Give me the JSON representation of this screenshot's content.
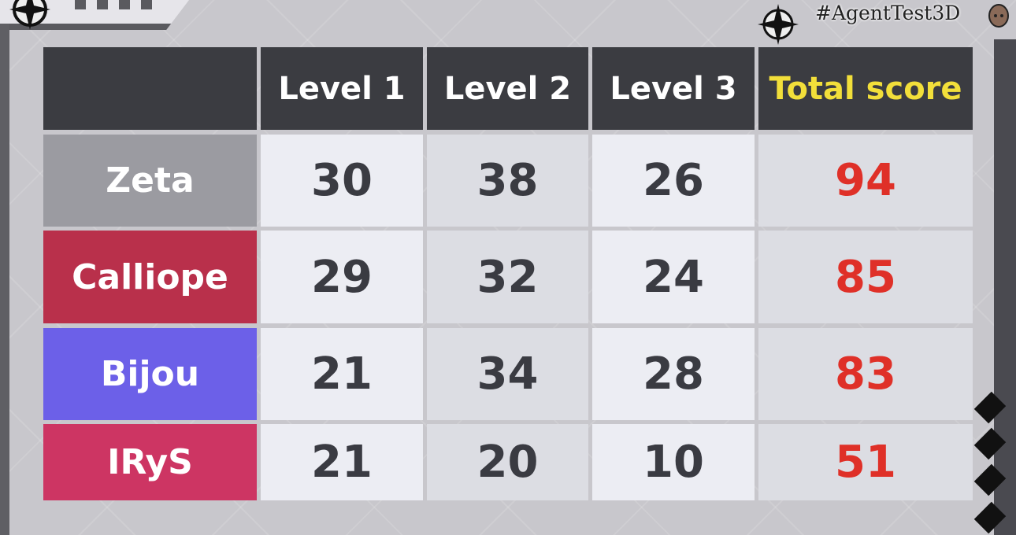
{
  "hashtag": "#AgentTest3D",
  "header": {
    "corner": "",
    "columns": [
      "Level 1",
      "Level 2",
      "Level 3",
      "Total score"
    ]
  },
  "rows": [
    {
      "name": "Zeta",
      "color": "#9b9ba1",
      "scores": [
        "30",
        "38",
        "26"
      ],
      "total": "94"
    },
    {
      "name": "Calliope",
      "color": "#b9304b",
      "scores": [
        "29",
        "32",
        "24"
      ],
      "total": "85"
    },
    {
      "name": "Bijou",
      "color": "#6c60e8",
      "scores": [
        "21",
        "34",
        "28"
      ],
      "total": "83"
    },
    {
      "name": "IRyS",
      "color": "#cd3563",
      "scores": [
        "21",
        "20",
        "10"
      ],
      "total": "51"
    }
  ],
  "colors": {
    "header": "#3b3c41",
    "total_header": "#f2df3a",
    "total_value": "#df3028"
  },
  "icons": [
    "compass-star-icon",
    "compass-star-icon",
    "mouse-mascot-icon",
    "diamond-icon"
  ]
}
